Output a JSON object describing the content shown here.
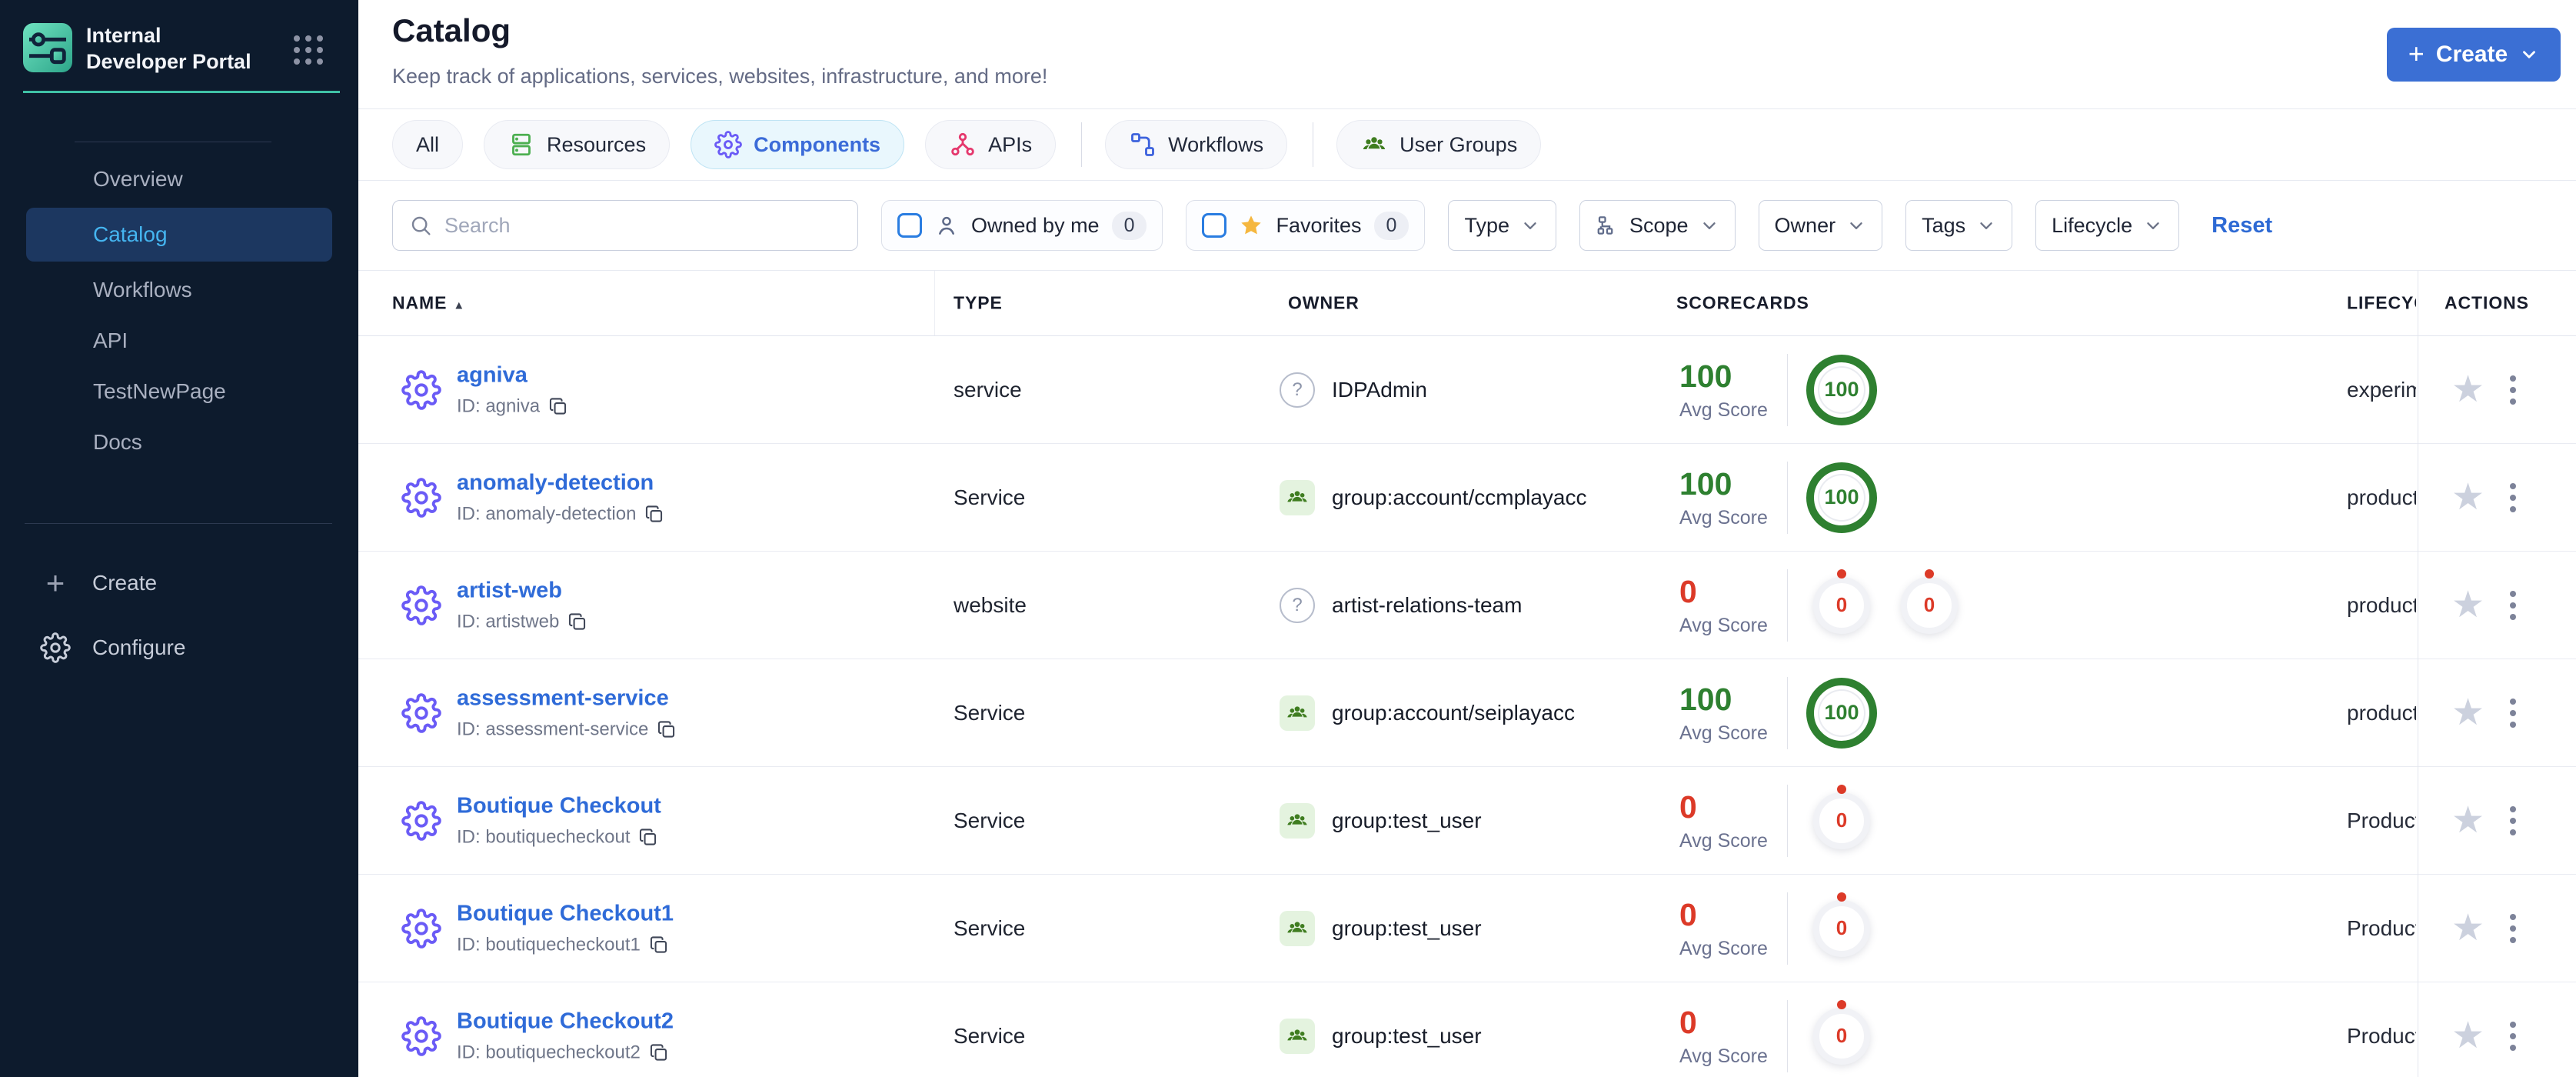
{
  "sidebar": {
    "logo_title": "Internal Developer Portal",
    "nav": [
      {
        "label": "Overview",
        "active": false
      },
      {
        "label": "Catalog",
        "active": true
      },
      {
        "label": "Workflows",
        "active": false
      },
      {
        "label": "API",
        "active": false
      },
      {
        "label": "TestNewPage",
        "active": false
      },
      {
        "label": "Docs",
        "active": false
      }
    ],
    "footer": [
      {
        "label": "Create",
        "icon": "plus"
      },
      {
        "label": "Configure",
        "icon": "gear"
      }
    ]
  },
  "header": {
    "title": "Catalog",
    "subtitle": "Keep track of applications, services, websites, infrastructure, and more!",
    "create_label": "Create"
  },
  "tabs": [
    {
      "label": "All",
      "icon": null,
      "active": false,
      "divider_after": false
    },
    {
      "label": "Resources",
      "icon": "resources",
      "active": false,
      "divider_after": false
    },
    {
      "label": "Components",
      "icon": "components",
      "active": true,
      "divider_after": false
    },
    {
      "label": "APIs",
      "icon": "apis",
      "active": false,
      "divider_after": true
    },
    {
      "label": "Workflows",
      "icon": "workflows",
      "active": false,
      "divider_after": true
    },
    {
      "label": "User Groups",
      "icon": "user-groups",
      "active": false,
      "divider_after": false
    }
  ],
  "filters": {
    "search_placeholder": "Search",
    "owned_by_me": {
      "label": "Owned by me",
      "count": "0"
    },
    "favorites": {
      "label": "Favorites",
      "count": "0"
    },
    "dropdowns": [
      {
        "label": "Type",
        "icon": null
      },
      {
        "label": "Scope",
        "icon": "scope"
      },
      {
        "label": "Owner",
        "icon": null
      },
      {
        "label": "Tags",
        "icon": null
      },
      {
        "label": "Lifecycle",
        "icon": null
      }
    ],
    "reset_label": "Reset"
  },
  "table": {
    "columns": [
      {
        "label": "NAME",
        "sort": "asc"
      },
      {
        "label": "TYPE"
      },
      {
        "label": "OWNER"
      },
      {
        "label": "SCORECARDS"
      },
      {
        "label": "LIFECYCLE"
      },
      {
        "label": "ACTIONS"
      }
    ],
    "avg_score_label": "Avg Score",
    "rows": [
      {
        "name": "agniva",
        "id": "ID: agniva",
        "type": "service",
        "owner": "IDPAdmin",
        "owner_kind": "unknown",
        "avg_score": 100,
        "rings": [
          100
        ],
        "lifecycle": "experimental"
      },
      {
        "name": "anomaly-detection",
        "id": "ID: anomaly-detection",
        "type": "Service",
        "owner": "group:account/ccmplayacc",
        "owner_kind": "group",
        "avg_score": 100,
        "rings": [
          100
        ],
        "lifecycle": "production"
      },
      {
        "name": "artist-web",
        "id": "ID: artistweb",
        "type": "website",
        "owner": "artist-relations-team",
        "owner_kind": "unknown",
        "avg_score": 0,
        "rings": [
          0,
          0
        ],
        "lifecycle": "production"
      },
      {
        "name": "assessment-service",
        "id": "ID: assessment-service",
        "type": "Service",
        "owner": "group:account/seiplayacc",
        "owner_kind": "group",
        "avg_score": 100,
        "rings": [
          100
        ],
        "lifecycle": "production"
      },
      {
        "name": "Boutique Checkout",
        "id": "ID: boutiquecheckout",
        "type": "Service",
        "owner": "group:test_user",
        "owner_kind": "group",
        "avg_score": 0,
        "rings": [
          0
        ],
        "lifecycle": "Production"
      },
      {
        "name": "Boutique Checkout1",
        "id": "ID: boutiquecheckout1",
        "type": "Service",
        "owner": "group:test_user",
        "owner_kind": "group",
        "avg_score": 0,
        "rings": [
          0
        ],
        "lifecycle": "Production"
      },
      {
        "name": "Boutique Checkout2",
        "id": "ID: boutiquecheckout2",
        "type": "Service",
        "owner": "group:test_user",
        "owner_kind": "group",
        "avg_score": 0,
        "rings": [
          0
        ],
        "lifecycle": "Production"
      }
    ]
  },
  "colors": {
    "accent_teal": "#3fc2a6",
    "primary_button": "#3b6fd4",
    "active_tab_text": "#3b6bd8",
    "link_blue": "#2f6bd8",
    "score_green": "#2e8030",
    "score_red": "#dc3a28",
    "sidebar_bg": "#0d1b2d",
    "sidebar_active_bg": "#1c3760",
    "sidebar_active_text": "#45b5f0"
  }
}
